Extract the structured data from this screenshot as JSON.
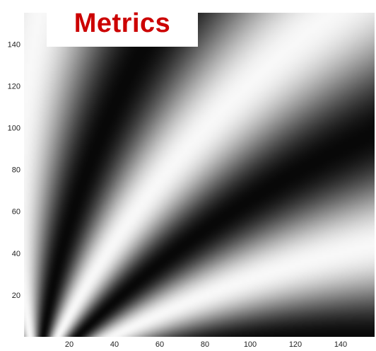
{
  "chart_data": {
    "type": "heatmap",
    "title": "Metrics",
    "xlabel": "",
    "ylabel": "",
    "xlim": [
      0,
      155
    ],
    "ylim": [
      0,
      155
    ],
    "x_ticks": [
      20,
      40,
      60,
      80,
      100,
      120,
      140
    ],
    "y_ticks": [
      20,
      40,
      60,
      80,
      100,
      120,
      140
    ],
    "x_tick_labels": [
      "20",
      "40",
      "60",
      "80",
      "100",
      "120",
      "140"
    ],
    "y_tick_labels": [
      "20",
      "40",
      "60",
      "80",
      "100",
      "120",
      "140"
    ],
    "colormap": "gray",
    "grid": false,
    "legend": "none"
  },
  "colors": {
    "title": "#cc0000",
    "title_background": "#ffffff",
    "frame": "#222222"
  }
}
